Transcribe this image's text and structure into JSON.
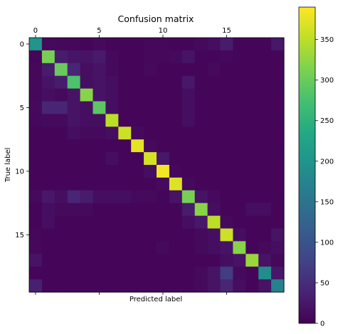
{
  "chart_data": {
    "type": "heatmap",
    "title": "Confusion matrix",
    "xlabel": "Predicted label",
    "ylabel": "True label",
    "x_ticks": [
      0,
      5,
      10,
      15
    ],
    "y_ticks": [
      0,
      5,
      10,
      15
    ],
    "x_axis_position": "top",
    "colormap": "viridis",
    "value_range": [
      0,
      390
    ],
    "colorbar_ticks": [
      0,
      50,
      100,
      150,
      200,
      250,
      300,
      350
    ],
    "rows": 20,
    "cols": 20,
    "matrix": [
      [
        200,
        10,
        8,
        8,
        6,
        10,
        6,
        6,
        6,
        8,
        8,
        6,
        6,
        10,
        14,
        30,
        6,
        6,
        6,
        25
      ],
      [
        6,
        310,
        30,
        22,
        20,
        28,
        10,
        6,
        6,
        8,
        8,
        10,
        20,
        6,
        6,
        8,
        6,
        6,
        6,
        6
      ],
      [
        8,
        30,
        300,
        40,
        15,
        20,
        10,
        6,
        6,
        10,
        6,
        6,
        6,
        6,
        10,
        6,
        6,
        6,
        6,
        6
      ],
      [
        8,
        20,
        30,
        280,
        15,
        20,
        15,
        6,
        6,
        6,
        6,
        6,
        25,
        6,
        6,
        6,
        6,
        6,
        6,
        6
      ],
      [
        8,
        15,
        10,
        20,
        320,
        20,
        15,
        6,
        6,
        6,
        6,
        6,
        15,
        6,
        6,
        6,
        6,
        6,
        6,
        6
      ],
      [
        10,
        40,
        40,
        20,
        15,
        290,
        15,
        6,
        6,
        6,
        6,
        6,
        15,
        6,
        6,
        6,
        6,
        6,
        6,
        6
      ],
      [
        8,
        10,
        10,
        20,
        15,
        15,
        350,
        6,
        6,
        6,
        6,
        6,
        15,
        6,
        6,
        6,
        6,
        6,
        6,
        6
      ],
      [
        6,
        6,
        6,
        15,
        10,
        10,
        15,
        360,
        10,
        6,
        6,
        6,
        6,
        6,
        6,
        6,
        6,
        6,
        6,
        6
      ],
      [
        6,
        6,
        6,
        6,
        6,
        6,
        6,
        6,
        375,
        10,
        6,
        6,
        6,
        6,
        6,
        6,
        6,
        6,
        6,
        6
      ],
      [
        6,
        6,
        6,
        6,
        6,
        6,
        15,
        6,
        6,
        365,
        25,
        6,
        6,
        6,
        6,
        6,
        6,
        6,
        6,
        6
      ],
      [
        6,
        6,
        6,
        6,
        6,
        6,
        6,
        6,
        6,
        15,
        385,
        8,
        6,
        6,
        6,
        6,
        6,
        6,
        6,
        6
      ],
      [
        6,
        6,
        6,
        6,
        6,
        6,
        6,
        6,
        6,
        6,
        10,
        370,
        10,
        6,
        6,
        6,
        6,
        6,
        6,
        6
      ],
      [
        10,
        25,
        15,
        40,
        30,
        15,
        15,
        15,
        10,
        10,
        6,
        20,
        310,
        20,
        10,
        6,
        6,
        6,
        6,
        6
      ],
      [
        6,
        15,
        10,
        10,
        10,
        6,
        6,
        6,
        6,
        6,
        6,
        6,
        30,
        320,
        15,
        6,
        6,
        15,
        15,
        6
      ],
      [
        6,
        15,
        6,
        6,
        6,
        6,
        6,
        6,
        6,
        6,
        6,
        6,
        15,
        25,
        350,
        10,
        6,
        6,
        6,
        6
      ],
      [
        8,
        6,
        6,
        6,
        6,
        6,
        6,
        6,
        6,
        6,
        6,
        6,
        6,
        10,
        15,
        360,
        15,
        6,
        6,
        20
      ],
      [
        8,
        6,
        6,
        6,
        6,
        6,
        6,
        6,
        6,
        6,
        10,
        6,
        6,
        10,
        15,
        20,
        320,
        6,
        10,
        15
      ],
      [
        20,
        6,
        6,
        6,
        6,
        6,
        6,
        6,
        6,
        6,
        6,
        6,
        6,
        6,
        6,
        15,
        20,
        330,
        20,
        8
      ],
      [
        6,
        6,
        6,
        6,
        6,
        6,
        6,
        6,
        6,
        6,
        6,
        6,
        6,
        10,
        20,
        70,
        10,
        6,
        190,
        25
      ],
      [
        35,
        6,
        6,
        6,
        6,
        6,
        6,
        6,
        6,
        6,
        6,
        6,
        6,
        10,
        20,
        40,
        15,
        6,
        20,
        170
      ]
    ]
  }
}
